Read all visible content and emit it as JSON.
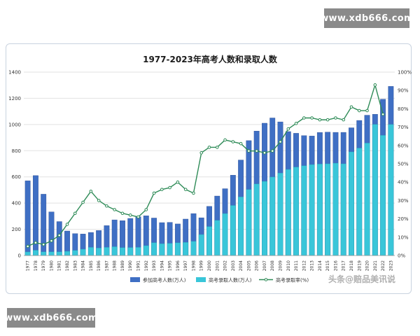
{
  "watermarks": {
    "top": "www.xdb666.com",
    "bottom": "www.xdb666.com"
  },
  "logo_text": "头条@赔品美讯说",
  "colors": {
    "applicants": "#3f6fc4",
    "admitted": "#39c6d9",
    "rate": "#2e8b57",
    "grid": "#e2e2e2"
  },
  "chart_data": {
    "type": "bar",
    "title": "1977-2023年高考人数和录取人数",
    "categories": [
      "1977",
      "1978",
      "1979",
      "1980",
      "1981",
      "1982",
      "1983",
      "1984",
      "1985",
      "1986",
      "1987",
      "1988",
      "1989",
      "1990",
      "1991",
      "1992",
      "1993",
      "1994",
      "1995",
      "1996",
      "1997",
      "1998",
      "1999",
      "2000",
      "2001",
      "2002",
      "2003",
      "2004",
      "2005",
      "2006",
      "2007",
      "2008",
      "2009",
      "2010",
      "2011",
      "2012",
      "2013",
      "2014",
      "2015",
      "2016",
      "2017",
      "2018",
      "2019",
      "2020",
      "2021",
      "2022",
      "2023"
    ],
    "series": [
      {
        "name": "参加高考人数(万人)",
        "axis": "left",
        "kind": "bar",
        "values": [
          570,
          610,
          468,
          333,
          259,
          187,
          167,
          164,
          176,
          191,
          228,
          272,
          266,
          283,
          296,
          303,
          286,
          251,
          253,
          241,
          278,
          320,
          288,
          375,
          454,
          510,
          613,
          729,
          877,
          950,
          1010,
          1050,
          1020,
          946,
          933,
          915,
          912,
          939,
          942,
          940,
          940,
          975,
          1031,
          1071,
          1078,
          1193,
          1291
        ]
      },
      {
        "name": "高考录取人数(万人)",
        "axis": "left",
        "kind": "bar",
        "values": [
          27,
          40,
          28,
          28,
          28,
          32,
          39,
          48,
          62,
          57,
          62,
          67,
          60,
          61,
          62,
          75,
          98,
          90,
          93,
          97,
          100,
          108,
          160,
          221,
          268,
          320,
          382,
          447,
          504,
          546,
          566,
          599,
          629,
          657,
          675,
          685,
          694,
          698,
          700,
          705,
          700,
          791,
          820,
          858,
          1001,
          917,
          1000
        ]
      },
      {
        "name": "高考录取率(%)",
        "axis": "right",
        "kind": "line",
        "values": [
          5,
          7,
          6,
          8,
          11,
          17,
          23,
          29,
          35,
          30,
          27,
          25,
          23,
          22,
          21,
          25,
          34,
          36,
          37,
          40,
          36,
          34,
          56,
          59,
          59,
          63,
          62,
          61,
          57,
          57,
          56,
          57,
          62,
          69,
          72,
          75,
          75,
          74,
          74,
          75,
          74,
          81,
          79,
          79,
          93,
          77,
          null
        ]
      }
    ],
    "y_left": {
      "min": 0,
      "max": 1400,
      "ticks": [
        "0",
        "200",
        "400",
        "600",
        "800",
        "1000",
        "1200",
        "1400"
      ]
    },
    "y_right": {
      "min": 0,
      "max": 100,
      "ticks": [
        "0%",
        "10%",
        "20%",
        "30%",
        "40%",
        "50%",
        "60%",
        "70%",
        "80%",
        "90%",
        "100%"
      ]
    },
    "legend_position": "bottom-center",
    "grid": true
  }
}
